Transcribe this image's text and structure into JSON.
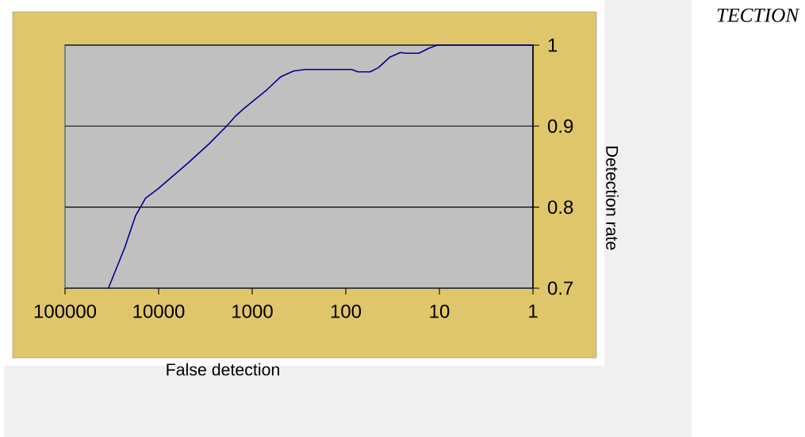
{
  "chart_data": {
    "type": "line",
    "xlabel": "False detection",
    "ylabel": "Detection rate",
    "annotations": [
      "TECTION"
    ],
    "log": "x",
    "grid": "y",
    "xlim": [
      100000,
      1
    ],
    "ylim": [
      0.7,
      1
    ],
    "xticks": [
      100000,
      10000,
      1000,
      100,
      10,
      1
    ],
    "yticks": [
      0.7,
      0.8,
      0.9,
      1
    ],
    "series": [
      {
        "color": "#00008b",
        "x": [
          34400,
          23000,
          17700,
          13800,
          10300,
          4900,
          2900,
          1840,
          1520,
          1250,
          695,
          495,
          363,
          270,
          87,
          74,
          55,
          45,
          34,
          26,
          23,
          16.5,
          13,
          10.5,
          1
        ],
        "values": [
          0.7,
          0.75,
          0.789,
          0.811,
          0.822,
          0.854,
          0.878,
          0.901,
          0.912,
          0.921,
          0.945,
          0.961,
          0.968,
          0.97,
          0.97,
          0.967,
          0.967,
          0.972,
          0.985,
          0.991,
          0.99,
          0.99,
          0.996,
          1.0,
          1.0
        ]
      }
    ]
  }
}
